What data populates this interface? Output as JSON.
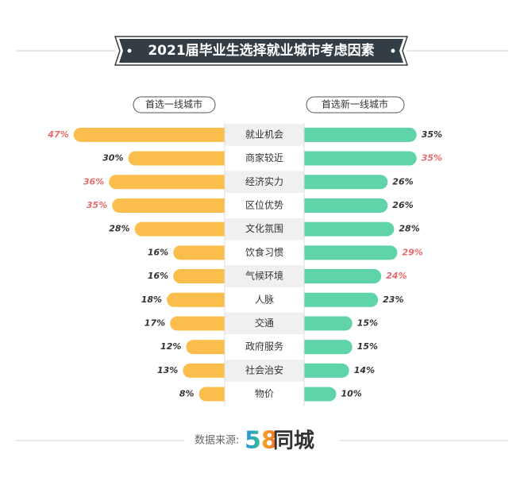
{
  "title": "2021届毕业生选择就业城市考虑因素",
  "chart_data": {
    "type": "butterfly",
    "categories": [
      "就业机会",
      "商家较近",
      "经济实力",
      "区位优势",
      "文化氛围",
      "饮食习惯",
      "气候环境",
      "人脉",
      "交通",
      "政府服务",
      "社会治安",
      "物价"
    ],
    "series": [
      {
        "name": "首选一线城市",
        "color": "#fbbd4b",
        "values": [
          47,
          30,
          36,
          35,
          28,
          16,
          16,
          18,
          17,
          12,
          13,
          8
        ],
        "value_labels": [
          "47%",
          "30%",
          "36%",
          "35%",
          "28%",
          "16%",
          "16%",
          "18%",
          "17%",
          "12%",
          "13%",
          "8%"
        ],
        "value_label_colors": [
          "#e8696b",
          "#333333",
          "#e8696b",
          "#e8696b",
          "#333333",
          "#333333",
          "#333333",
          "#333333",
          "#333333",
          "#333333",
          "#333333",
          "#333333"
        ]
      },
      {
        "name": "首选新一线城市",
        "color": "#5fd4a9",
        "values": [
          35,
          35,
          26,
          26,
          28,
          29,
          24,
          23,
          15,
          15,
          14,
          10
        ],
        "value_labels": [
          "35%",
          "35%",
          "26%",
          "26%",
          "28%",
          "29%",
          "24%",
          "23%",
          "15%",
          "15%",
          "14%",
          "10%"
        ],
        "value_label_colors": [
          "#333333",
          "#e8696b",
          "#333333",
          "#333333",
          "#333333",
          "#e8696b",
          "#e8696b",
          "#333333",
          "#333333",
          "#333333",
          "#333333",
          "#333333"
        ]
      }
    ]
  },
  "source": {
    "label": "数据来源:",
    "logo_number": "58",
    "logo_text": "同城"
  }
}
